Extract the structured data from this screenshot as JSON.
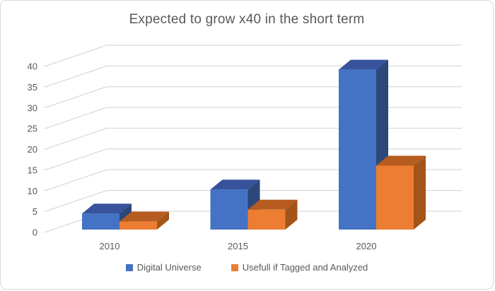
{
  "chart": {
    "title": "Expected to grow x40 in the short term"
  },
  "chart_data": {
    "type": "bar",
    "subtype": "3d-clustered-column",
    "title": "Expected to grow x40 in the short term",
    "categories": [
      "2010",
      "2015",
      "2020"
    ],
    "series": [
      {
        "name": "Digital Universe",
        "values": [
          4,
          10,
          40
        ],
        "color": "#4472C4",
        "color_top": "#36539B",
        "color_side": "#2C477A"
      },
      {
        "name": "Usefull if Tagged and Analyzed",
        "values": [
          2,
          5,
          16
        ],
        "color": "#ED7D31",
        "color_top": "#B65C20",
        "color_side": "#A35419"
      }
    ],
    "xlabel": "",
    "ylabel": "",
    "ylim": [
      0,
      40
    ],
    "ytick_interval": 5,
    "yticks": [
      0,
      5,
      10,
      15,
      20,
      25,
      30,
      35,
      40
    ],
    "grid": true,
    "legend_position": "bottom"
  },
  "colors": {
    "gridline": "#D9D9D9",
    "text": "#595959",
    "border": "#D9D9D9",
    "background": "#FFFFFF"
  }
}
